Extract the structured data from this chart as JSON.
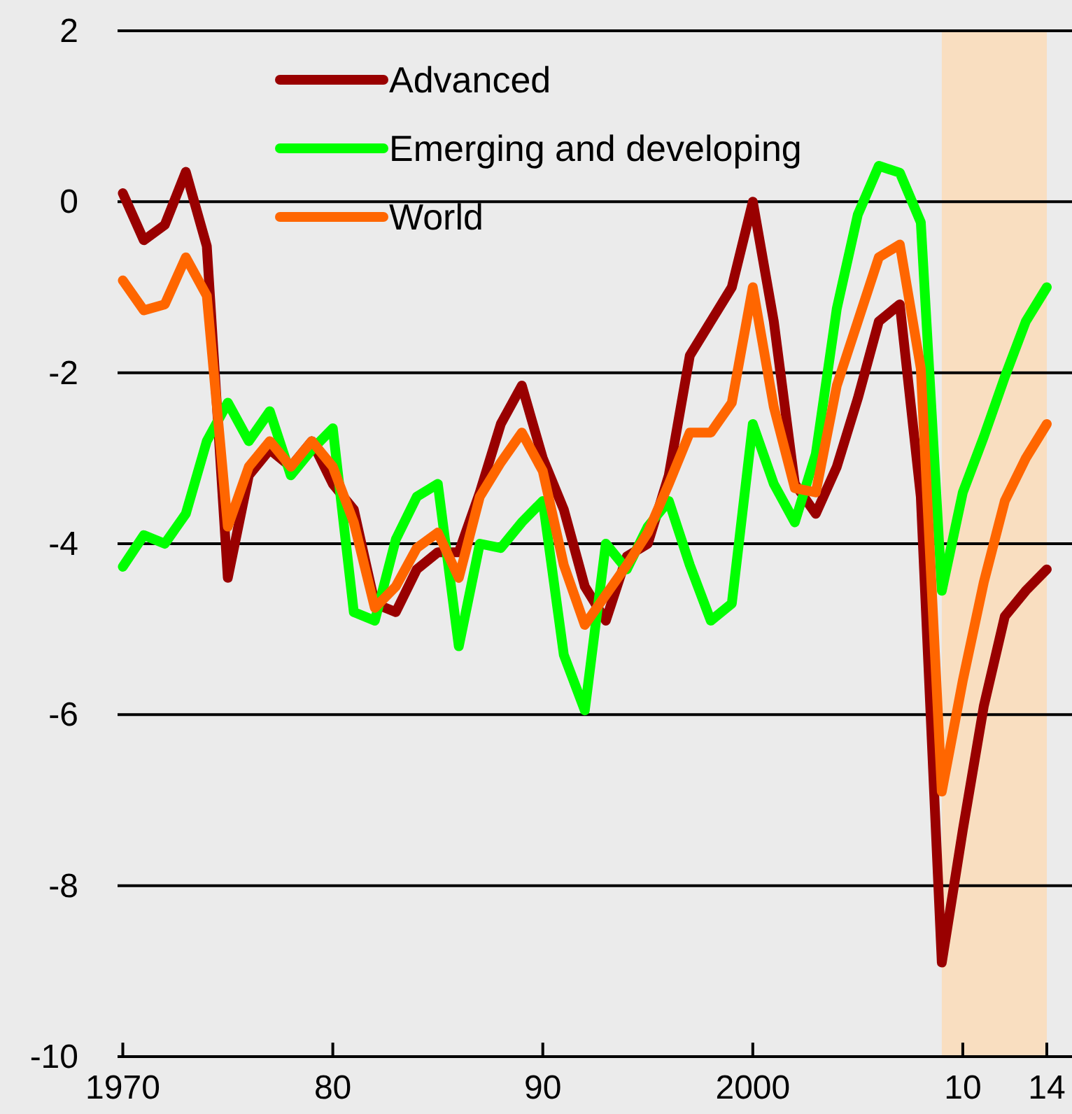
{
  "chart_data": {
    "type": "line",
    "x": [
      1970,
      1971,
      1972,
      1973,
      1974,
      1975,
      1976,
      1977,
      1978,
      1979,
      1980,
      1981,
      1982,
      1983,
      1984,
      1985,
      1986,
      1987,
      1988,
      1989,
      1990,
      1991,
      1992,
      1993,
      1994,
      1995,
      1996,
      1997,
      1998,
      1999,
      2000,
      2001,
      2002,
      2003,
      2004,
      2005,
      2006,
      2007,
      2008,
      2009,
      2010,
      2011,
      2012,
      2013,
      2014
    ],
    "series": [
      {
        "name": "Advanced",
        "color": "#990000",
        "values": [
          0.1,
          -0.45,
          -0.27,
          0.35,
          -0.52,
          -4.4,
          -3.2,
          -2.9,
          -3.1,
          -2.8,
          -3.3,
          -3.6,
          -4.7,
          -4.8,
          -4.3,
          -4.1,
          -4.1,
          -3.4,
          -2.6,
          -2.15,
          -3.0,
          -3.6,
          -4.5,
          -4.9,
          -4.15,
          -4.0,
          -3.2,
          -1.8,
          -1.4,
          -1.0,
          0.0,
          -1.4,
          -3.3,
          -3.65,
          -3.1,
          -2.3,
          -1.4,
          -1.2,
          -3.45,
          -8.9,
          -7.35,
          -5.9,
          -4.85,
          -4.55,
          -4.3
        ]
      },
      {
        "name": "Emerging and developing",
        "color": "#00ff00",
        "values": [
          -4.27,
          -3.9,
          -4.0,
          -3.65,
          -2.8,
          -2.35,
          -2.8,
          -2.45,
          -3.2,
          -2.9,
          -2.65,
          -4.8,
          -4.9,
          -3.95,
          -3.45,
          -3.3,
          -5.2,
          -4.0,
          -4.05,
          -3.75,
          -3.5,
          -5.3,
          -5.95,
          -4.0,
          -4.3,
          -3.8,
          -3.5,
          -4.25,
          -4.9,
          -4.7,
          -2.6,
          -3.3,
          -3.75,
          -2.95,
          -1.25,
          -0.15,
          0.42,
          0.34,
          -0.24,
          -4.55,
          -3.4,
          -2.75,
          -2.05,
          -1.4,
          -1.0
        ]
      },
      {
        "name": "World",
        "color": "#ff6600",
        "values": [
          -0.92,
          -1.27,
          -1.2,
          -0.65,
          -1.1,
          -3.8,
          -3.1,
          -2.8,
          -3.1,
          -2.8,
          -3.1,
          -3.75,
          -4.75,
          -4.5,
          -4.05,
          -3.87,
          -4.4,
          -3.45,
          -3.05,
          -2.7,
          -3.15,
          -4.25,
          -4.95,
          -4.6,
          -4.25,
          -3.87,
          -3.3,
          -2.7,
          -2.7,
          -2.35,
          -1.0,
          -2.4,
          -3.35,
          -3.4,
          -2.15,
          -1.4,
          -0.65,
          -0.5,
          -1.95,
          -6.9,
          -5.6,
          -4.45,
          -3.5,
          -3.0,
          -2.6
        ]
      }
    ],
    "xlim": [
      1969.75,
      2015.2
    ],
    "xticks": [
      {
        "value": 1970,
        "label": "1970"
      },
      {
        "value": 1980,
        "label": "80"
      },
      {
        "value": 1990,
        "label": "90"
      },
      {
        "value": 2000,
        "label": "2000"
      },
      {
        "value": 2010,
        "label": "10"
      },
      {
        "value": 2014,
        "label": "14"
      }
    ],
    "ylim": [
      -10,
      2
    ],
    "yticks": [
      -10,
      -8,
      -6,
      -4,
      -2,
      0,
      2
    ],
    "grid": "y",
    "legend": "top left",
    "marker": "none",
    "line_style": "solid",
    "bands": [
      {
        "axis": "x",
        "from": 2009,
        "to": 2014,
        "color": "#fbdcb8"
      }
    ]
  }
}
